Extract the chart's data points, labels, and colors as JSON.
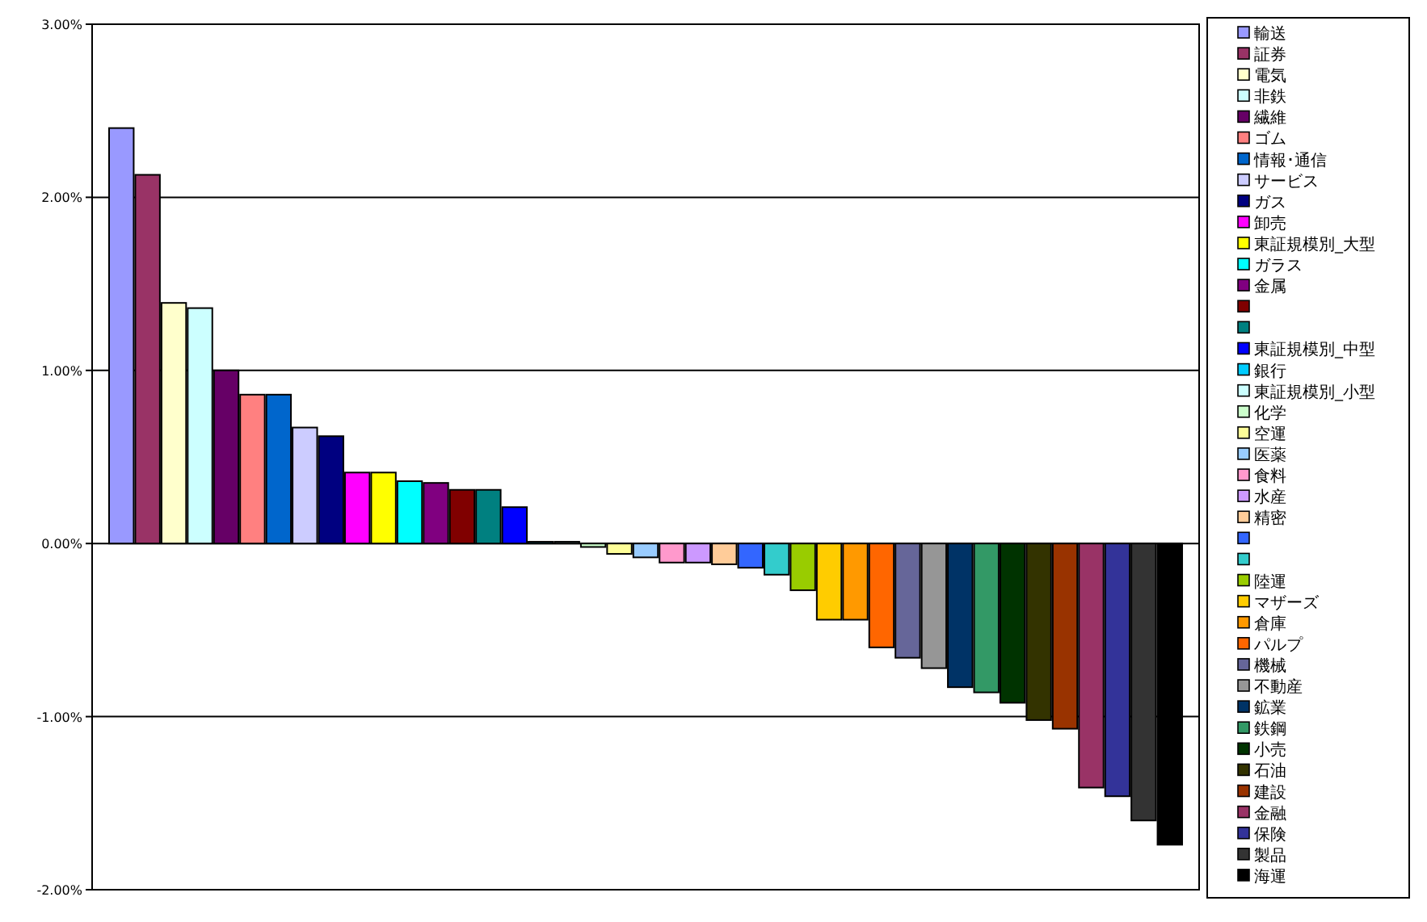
{
  "chart_data": {
    "type": "bar",
    "categories": [
      null
    ],
    "series": [
      {
        "name": "輸送",
        "color": "#9999ff",
        "values": [
          2.4
        ]
      },
      {
        "name": "証券",
        "color": "#993366",
        "values": [
          2.13
        ]
      },
      {
        "name": "電気",
        "color": "#ffffcc",
        "values": [
          1.39
        ]
      },
      {
        "name": "非鉄",
        "color": "#ccffff",
        "values": [
          1.36
        ]
      },
      {
        "name": "繊維",
        "color": "#660066",
        "values": [
          1.0
        ]
      },
      {
        "name": "ゴム",
        "color": "#ff8080",
        "values": [
          0.86
        ]
      },
      {
        "name": "情報･通信",
        "color": "#0066cc",
        "values": [
          0.86
        ]
      },
      {
        "name": "サービス",
        "color": "#ccccff",
        "values": [
          0.67
        ]
      },
      {
        "name": "ガス",
        "color": "#000080",
        "values": [
          0.62
        ]
      },
      {
        "name": "卸売",
        "color": "#ff00ff",
        "values": [
          0.41
        ]
      },
      {
        "name": "東証規模別_大型",
        "color": "#ffff00",
        "values": [
          0.41
        ]
      },
      {
        "name": "ガラス",
        "color": "#00ffff",
        "values": [
          0.36
        ]
      },
      {
        "name": "金属",
        "color": "#800080",
        "values": [
          0.35
        ]
      },
      {
        "color": "#800000",
        "values": [
          0.31
        ]
      },
      {
        "color": "#008080",
        "values": [
          0.31
        ]
      },
      {
        "name": "東証規模別_中型",
        "color": "#0000ff",
        "values": [
          0.21
        ]
      },
      {
        "name": "銀行",
        "color": "#00ccff",
        "values": [
          0.01
        ]
      },
      {
        "name": "東証規模別_小型",
        "color": "#ccffff",
        "values": [
          0.01
        ]
      },
      {
        "name": "化学",
        "color": "#ccffcc",
        "values": [
          -0.02
        ]
      },
      {
        "name": "空運",
        "color": "#ffff99",
        "values": [
          -0.06
        ]
      },
      {
        "name": "医薬",
        "color": "#99ccff",
        "values": [
          -0.08
        ]
      },
      {
        "name": "食料",
        "color": "#ff99cc",
        "values": [
          -0.11
        ]
      },
      {
        "name": "水産",
        "color": "#cc99ff",
        "values": [
          -0.11
        ]
      },
      {
        "name": "精密",
        "color": "#ffcc99",
        "values": [
          -0.12
        ]
      },
      {
        "color": "#3366ff",
        "values": [
          -0.14
        ]
      },
      {
        "color": "#33cccc",
        "values": [
          -0.18
        ]
      },
      {
        "name": "陸運",
        "color": "#99cc00",
        "values": [
          -0.27
        ]
      },
      {
        "name": "マザーズ",
        "color": "#ffcc00",
        "values": [
          -0.44
        ]
      },
      {
        "name": "倉庫",
        "color": "#ff9900",
        "values": [
          -0.44
        ]
      },
      {
        "name": "パルプ",
        "color": "#ff6600",
        "values": [
          -0.6
        ]
      },
      {
        "name": "機械",
        "color": "#666699",
        "values": [
          -0.66
        ]
      },
      {
        "name": "不動産",
        "color": "#969696",
        "values": [
          -0.72
        ]
      },
      {
        "name": "鉱業",
        "color": "#003366",
        "values": [
          -0.83
        ]
      },
      {
        "name": "鉄鋼",
        "color": "#339966",
        "values": [
          -0.86
        ]
      },
      {
        "name": "小売",
        "color": "#003300",
        "values": [
          -0.92
        ]
      },
      {
        "name": "石油",
        "color": "#333300",
        "values": [
          -1.02
        ]
      },
      {
        "name": "建設",
        "color": "#993300",
        "values": [
          -1.07
        ]
      },
      {
        "name": "金融",
        "color": "#993366",
        "values": [
          -1.41
        ]
      },
      {
        "name": "保険",
        "color": "#333399",
        "values": [
          -1.46
        ]
      },
      {
        "name": "製品",
        "color": "#333333",
        "values": [
          -1.6
        ]
      },
      {
        "name": "海運",
        "color": "#000000",
        "values": [
          -1.74
        ]
      }
    ],
    "ylim": [
      -2,
      3
    ],
    "yticks": [
      {
        "value": -2,
        "label": "-2.00%"
      },
      {
        "value": -1,
        "label": "-1.00%"
      },
      {
        "value": 0,
        "label": "0.00%"
      },
      {
        "value": 1,
        "label": "1.00%"
      },
      {
        "value": 2,
        "label": "2.00%"
      },
      {
        "value": 3,
        "label": "3.00%"
      }
    ],
    "grid": "y",
    "legend": "right",
    "tick_labels": "y"
  }
}
